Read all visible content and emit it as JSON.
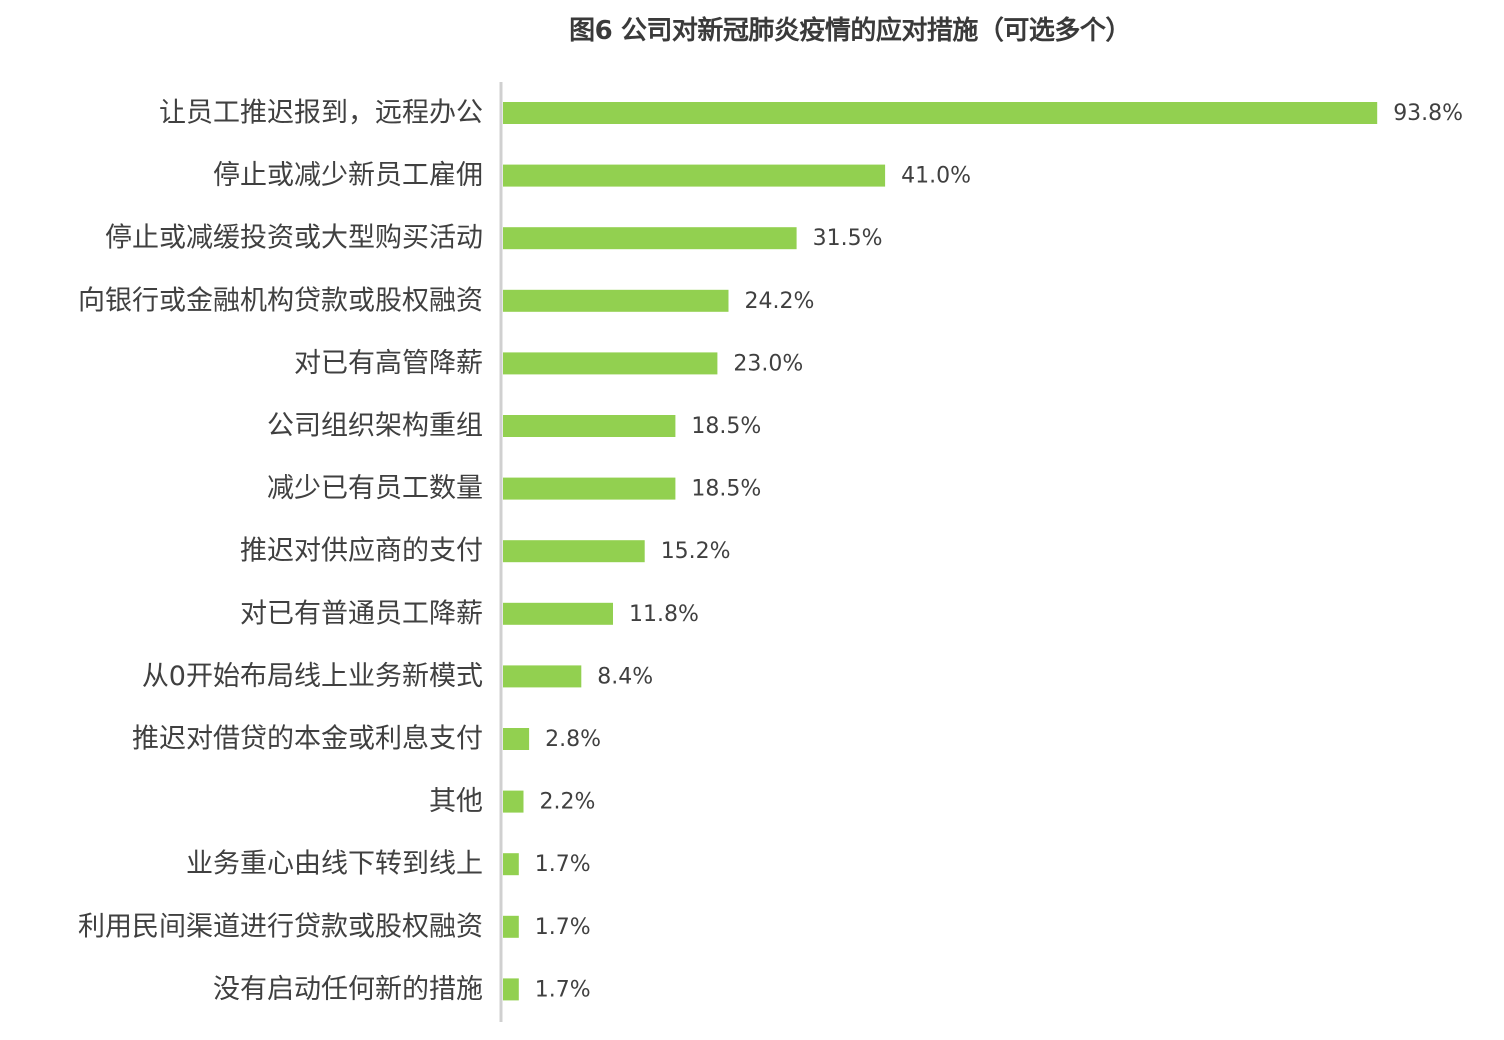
{
  "chart_data": {
    "type": "bar",
    "orientation": "horizontal",
    "title": "图6 公司对新冠肺炎疫情的应对措施（可选多个）",
    "categories": [
      "让员工推迟报到，远程办公",
      "停止或减少新员工雇佣",
      "停止或减缓投资或大型购买活动",
      "向银行或金融机构贷款或股权融资",
      "对已有高管降薪",
      "公司组织架构重组",
      "减少已有员工数量",
      "推迟对供应商的支付",
      "对已有普通员工降薪",
      "从0开始布局线上业务新模式",
      "推迟对借贷的本金或利息支付",
      "其他",
      "业务重心由线下转到线上",
      "利用民间渠道进行贷款或股权融资",
      "没有启动任何新的措施"
    ],
    "values": [
      93.8,
      41.0,
      31.5,
      24.2,
      23.0,
      18.5,
      18.5,
      15.2,
      11.8,
      8.4,
      2.8,
      2.2,
      1.7,
      1.7,
      1.7
    ],
    "value_labels": [
      "93.8%",
      "41.0%",
      "31.5%",
      "24.2%",
      "23.0%",
      "18.5%",
      "18.5%",
      "15.2%",
      "11.8%",
      "8.4%",
      "2.8%",
      "2.2%",
      "1.7%",
      "1.7%",
      "1.7%"
    ],
    "xlim": [
      0,
      100
    ],
    "grid": false,
    "legend": "none",
    "colors": {
      "bar": "#92d050",
      "axis": "#d0d0d0",
      "label_text": "#404040",
      "value_text": "#404040",
      "title_text": "#3a3a3a"
    }
  }
}
